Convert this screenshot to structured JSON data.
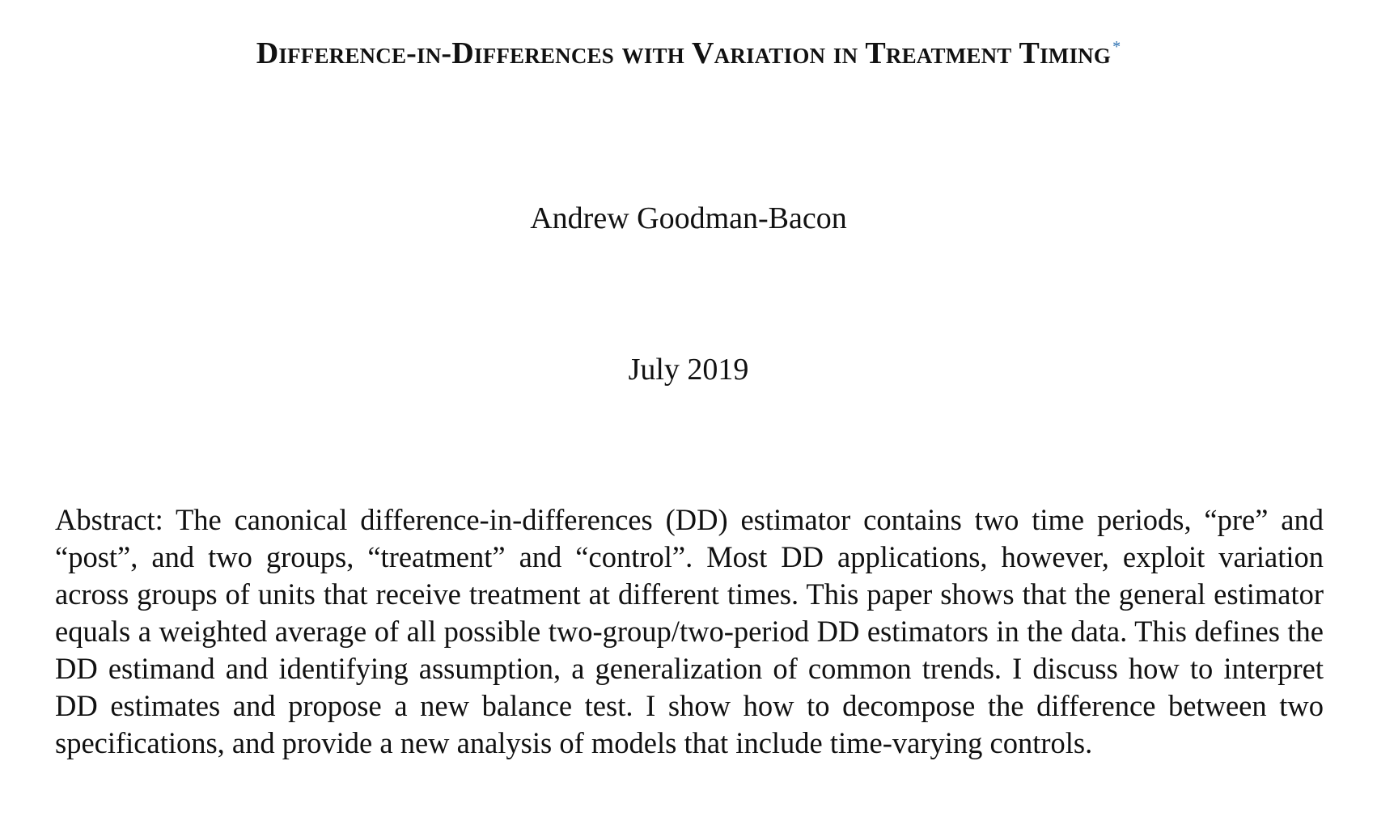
{
  "paper": {
    "title": "Difference-in-Differences with Variation in Treatment Timing",
    "title_footnote_mark": "*",
    "author": "Andrew Goodman-Bacon",
    "date": "July 2019",
    "abstract_label": "Abstract:",
    "abstract_text": "The canonical difference-in-differences (DD) estimator contains two time periods, “pre” and “post”, and two groups, “treatment” and “control”. Most DD applications, however, exploit variation across groups of units that receive treatment at different times. This paper shows that the general estimator equals a weighted average of all possible two-group/two-period DD estimators in the data. This defines the DD estimand and identifying assumption, a generalization of common trends. I discuss how to interpret DD estimates and propose a new balance test. I show how to decompose the difference between two specifications, and provide a new analysis of models that include time-varying controls."
  },
  "colors": {
    "text": "#111111",
    "footnote_mark": "#2a6fb0",
    "background": "#ffffff"
  }
}
